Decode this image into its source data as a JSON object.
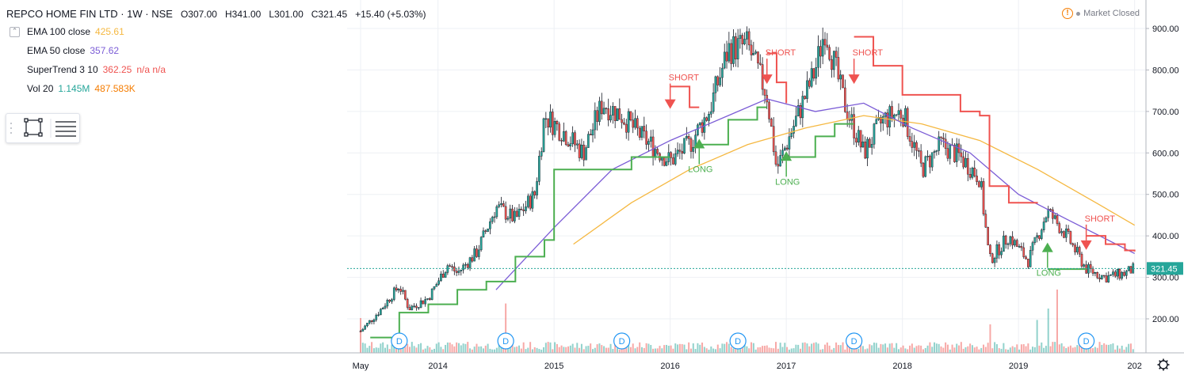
{
  "header": {
    "symbol": "REPCO HOME FIN LTD · 1W · NSE",
    "open": "O307.00",
    "high": "H341.00",
    "low": "L301.00",
    "close": "C321.45",
    "change": "+15.40 (+5.03%)"
  },
  "market_status": "Market Closed",
  "legend": [
    {
      "label": "EMA 100 close",
      "value": "425.61",
      "color": "#f5b841"
    },
    {
      "label": "EMA 50 close",
      "value": "357.62",
      "color": "#7b5cd6"
    },
    {
      "label": "SuperTrend 3 10",
      "value": "362.25",
      "extra": "n/a n/a",
      "color": "#ef5350"
    },
    {
      "label": "Vol 20",
      "value": "1.145M",
      "extra": "487.583K",
      "color": "#26a69a",
      "extra_color": "#f57c00"
    }
  ],
  "colors": {
    "up": "#26a69a",
    "down": "#ef5350",
    "ema100": "#f5b841",
    "ema50": "#7b5cd6",
    "st_up": "#4caf50",
    "st_down": "#ef5350",
    "grid": "#eef0f4",
    "axis_text": "#131722"
  },
  "chart_data": {
    "type": "candlestick",
    "title": "REPCO HOME FIN LTD · 1W · NSE",
    "ylim": [
      100,
      940
    ],
    "y_ticks": [
      "200.00",
      "300.00",
      "400.00",
      "500.00",
      "600.00",
      "700.00",
      "800.00",
      "900.00"
    ],
    "x_ticks": [
      "May",
      "2014",
      "2015",
      "2016",
      "2017",
      "2018",
      "2019",
      "202"
    ],
    "last_price": "321.45",
    "price_path": [
      [
        "2013-05",
        170
      ],
      [
        "2013-07",
        220
      ],
      [
        "2013-09",
        280
      ],
      [
        "2013-10",
        225
      ],
      [
        "2013-12",
        250
      ],
      [
        "2014-02",
        330
      ],
      [
        "2014-03",
        310
      ],
      [
        "2014-05",
        360
      ],
      [
        "2014-07",
        470
      ],
      [
        "2014-09",
        440
      ],
      [
        "2014-11",
        500
      ],
      [
        "2014-12",
        690
      ],
      [
        "2015-02",
        650
      ],
      [
        "2015-04",
        600
      ],
      [
        "2015-06",
        720
      ],
      [
        "2015-08",
        690
      ],
      [
        "2015-10",
        640
      ],
      [
        "2016-01",
        580
      ],
      [
        "2016-03",
        620
      ],
      [
        "2016-05",
        700
      ],
      [
        "2016-07",
        850
      ],
      [
        "2016-09",
        860
      ],
      [
        "2016-11",
        740
      ],
      [
        "2016-12",
        560
      ],
      [
        "2017-02",
        680
      ],
      [
        "2017-04",
        800
      ],
      [
        "2017-05",
        900
      ],
      [
        "2017-07",
        720
      ],
      [
        "2017-09",
        600
      ],
      [
        "2017-11",
        680
      ],
      [
        "2018-01",
        700
      ],
      [
        "2018-03",
        560
      ],
      [
        "2018-05",
        620
      ],
      [
        "2018-07",
        590
      ],
      [
        "2018-09",
        540
      ],
      [
        "2018-10",
        340
      ],
      [
        "2018-12",
        400
      ],
      [
        "2019-02",
        340
      ],
      [
        "2019-04",
        460
      ],
      [
        "2019-06",
        400
      ],
      [
        "2019-08",
        320
      ],
      [
        "2019-10",
        300
      ],
      [
        "2019-12",
        310
      ],
      [
        "2020-01",
        321.45
      ]
    ],
    "ema50": [
      [
        "2014-07",
        270
      ],
      [
        "2015-01",
        420
      ],
      [
        "2015-07",
        560
      ],
      [
        "2016-01",
        630
      ],
      [
        "2016-07",
        690
      ],
      [
        "2016-11",
        730
      ],
      [
        "2017-04",
        700
      ],
      [
        "2017-09",
        720
      ],
      [
        "2018-02",
        660
      ],
      [
        "2018-08",
        600
      ],
      [
        "2019-01",
        500
      ],
      [
        "2019-06",
        440
      ],
      [
        "2020-01",
        357.62
      ]
    ],
    "ema100": [
      [
        "2015-03",
        380
      ],
      [
        "2015-09",
        480
      ],
      [
        "2016-03",
        560
      ],
      [
        "2016-09",
        620
      ],
      [
        "2017-03",
        660
      ],
      [
        "2017-09",
        690
      ],
      [
        "2018-03",
        670
      ],
      [
        "2018-09",
        630
      ],
      [
        "2019-03",
        560
      ],
      [
        "2019-09",
        480
      ],
      [
        "2020-01",
        425.61
      ]
    ],
    "supertrend_up": [
      [
        [
          "2013-06",
          155
        ],
        [
          "2013-09",
          215
        ],
        [
          "2013-12",
          235
        ],
        [
          "2014-03",
          270
        ],
        [
          "2014-06",
          290
        ],
        [
          "2014-09",
          350
        ],
        [
          "2014-12",
          390
        ],
        [
          "2015-01",
          560
        ],
        [
          "2015-08",
          560
        ],
        [
          "2015-09",
          590
        ],
        [
          "2016-01",
          590
        ]
      ],
      [
        [
          "2016-04",
          620
        ],
        [
          "2016-07",
          680
        ],
        [
          "2016-10",
          710
        ],
        [
          "2016-11",
          710
        ]
      ],
      [
        [
          "2017-01",
          590
        ],
        [
          "2017-04",
          640
        ],
        [
          "2017-06",
          670
        ],
        [
          "2017-08",
          670
        ]
      ],
      [
        [
          "2019-04",
          320
        ],
        [
          "2019-08",
          320
        ]
      ]
    ],
    "supertrend_down": [
      [
        [
          "2016-01",
          760
        ],
        [
          "2016-03",
          710
        ],
        [
          "2016-04",
          710
        ]
      ],
      [
        [
          "2016-11",
          840
        ],
        [
          "2016-12",
          770
        ],
        [
          "2017-01",
          720
        ]
      ],
      [
        [
          "2017-08",
          880
        ],
        [
          "2017-10",
          810
        ],
        [
          "2018-01",
          740
        ],
        [
          "2018-07",
          700
        ],
        [
          "2018-09",
          690
        ],
        [
          "2018-10",
          520
        ],
        [
          "2018-12",
          480
        ],
        [
          "2019-03",
          480
        ]
      ],
      [
        [
          "2019-08",
          400
        ],
        [
          "2019-10",
          380
        ],
        [
          "2019-12",
          365
        ],
        [
          "2020-01",
          362.25
        ]
      ]
    ],
    "signals": [
      {
        "label": "SHORT",
        "date": "2016-01",
        "price": 710,
        "kind": "short"
      },
      {
        "label": "LONG",
        "date": "2016-04",
        "price": 630,
        "kind": "long"
      },
      {
        "label": "SHORT",
        "date": "2016-11",
        "price": 770,
        "kind": "short"
      },
      {
        "label": "LONG",
        "date": "2017-01",
        "price": 600,
        "kind": "long"
      },
      {
        "label": "SHORT",
        "date": "2017-08",
        "price": 770,
        "kind": "short"
      },
      {
        "label": "LONG",
        "date": "2019-04",
        "price": 380,
        "kind": "long"
      },
      {
        "label": "SHORT",
        "date": "2019-08",
        "price": 370,
        "kind": "short"
      }
    ],
    "dividend_markers": [
      "D",
      "D",
      "D",
      "D",
      "D",
      "D"
    ],
    "dividend_dates": [
      "2013-09",
      "2014-08",
      "2015-08",
      "2016-08",
      "2017-08",
      "2019-08"
    ],
    "volume_spikes": [
      [
        "2013-05",
        0.55
      ],
      [
        "2014-08",
        0.78
      ],
      [
        "2018-10",
        0.45
      ],
      [
        "2019-03",
        0.52
      ],
      [
        "2019-04",
        0.7
      ],
      [
        "2019-05",
        1.0
      ]
    ]
  }
}
